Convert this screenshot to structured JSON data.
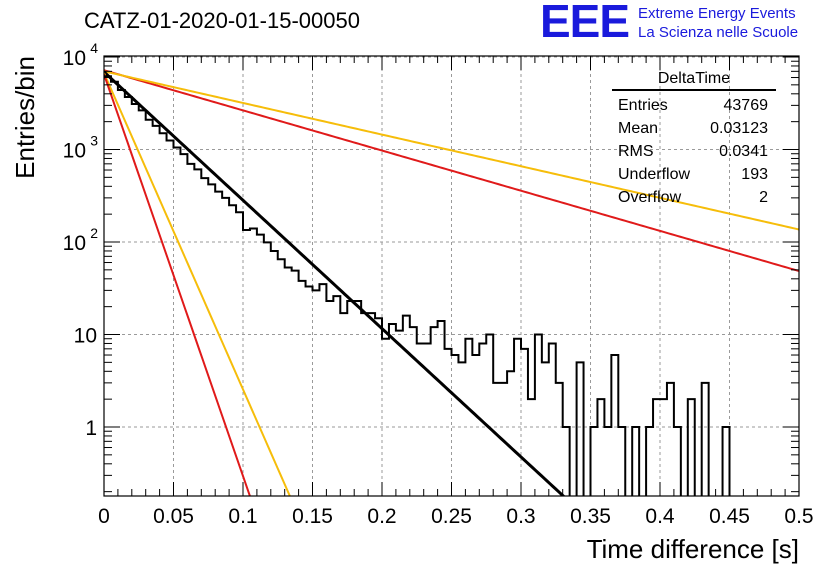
{
  "title": "CATZ-01-2020-01-15-00050",
  "logo": {
    "mark": "EEE",
    "line1": "Extreme Energy Events",
    "line2": "La Scienza nelle Scuole"
  },
  "stats": {
    "title": "DeltaTime",
    "rows": [
      {
        "label": "Entries",
        "value": "43769"
      },
      {
        "label": "Mean",
        "value": "0.03123"
      },
      {
        "label": "RMS",
        "value": "0.0341"
      },
      {
        "label": "Underflow",
        "value": "193"
      },
      {
        "label": "Overflow",
        "value": "2"
      }
    ]
  },
  "colors": {
    "histogram": "#000000",
    "fit": "#000000",
    "red": "#e01a1a",
    "orange": "#f6bd0a",
    "grid": "#9a9a9a"
  },
  "chart_data": {
    "type": "histogram",
    "xlabel": "Time difference [s]",
    "ylabel": "Entries/bin",
    "xlim": [
      0,
      0.5
    ],
    "ylim": [
      0.17,
      11000
    ],
    "yscale": "log",
    "grid": true,
    "x_ticks": [
      "0",
      "0.05",
      "0.1",
      "0.15",
      "0.2",
      "0.25",
      "0.3",
      "0.35",
      "0.4",
      "0.45",
      "0.5"
    ],
    "y_ticks": [
      {
        "value": 1,
        "label": "1"
      },
      {
        "value": 10,
        "label": "10"
      },
      {
        "value": 100,
        "label": "10",
        "exp": "2"
      },
      {
        "value": 1000,
        "label": "10",
        "exp": "3"
      },
      {
        "value": 10000,
        "label": "10",
        "exp": "4"
      }
    ],
    "bin_width": 0.005,
    "bin_counts": [
      6200,
      5400,
      4400,
      3700,
      3100,
      2650,
      2100,
      1800,
      1500,
      1250,
      1050,
      890,
      700,
      610,
      490,
      420,
      350,
      300,
      250,
      210,
      135,
      140,
      120,
      99,
      80,
      65,
      53,
      49,
      38,
      33,
      30,
      35,
      23,
      26,
      17,
      23,
      23,
      17,
      17,
      15,
      9,
      13,
      11,
      16,
      12,
      8,
      8,
      12,
      14,
      7,
      6,
      5,
      9,
      6,
      8,
      10,
      3,
      3,
      4,
      9,
      7,
      2,
      10,
      5,
      8,
      3,
      1,
      0,
      5,
      0,
      1,
      2,
      1,
      6,
      1,
      0,
      1,
      0,
      1,
      2,
      2,
      3,
      1,
      0,
      2,
      0,
      3,
      0,
      0,
      1,
      0,
      0,
      0,
      0,
      0,
      0,
      0,
      0,
      0,
      0
    ],
    "curves": [
      {
        "color": "red",
        "a": 7200,
        "tau": 0.1
      },
      {
        "color": "orange",
        "a": 7000,
        "tau": 0.127
      },
      {
        "color": "fit",
        "a": 6900,
        "tau": 0.0313
      },
      {
        "color": "orange",
        "a": 6700,
        "tau": 0.0127
      },
      {
        "color": "red",
        "a": 6500,
        "tau": 0.01
      }
    ]
  }
}
